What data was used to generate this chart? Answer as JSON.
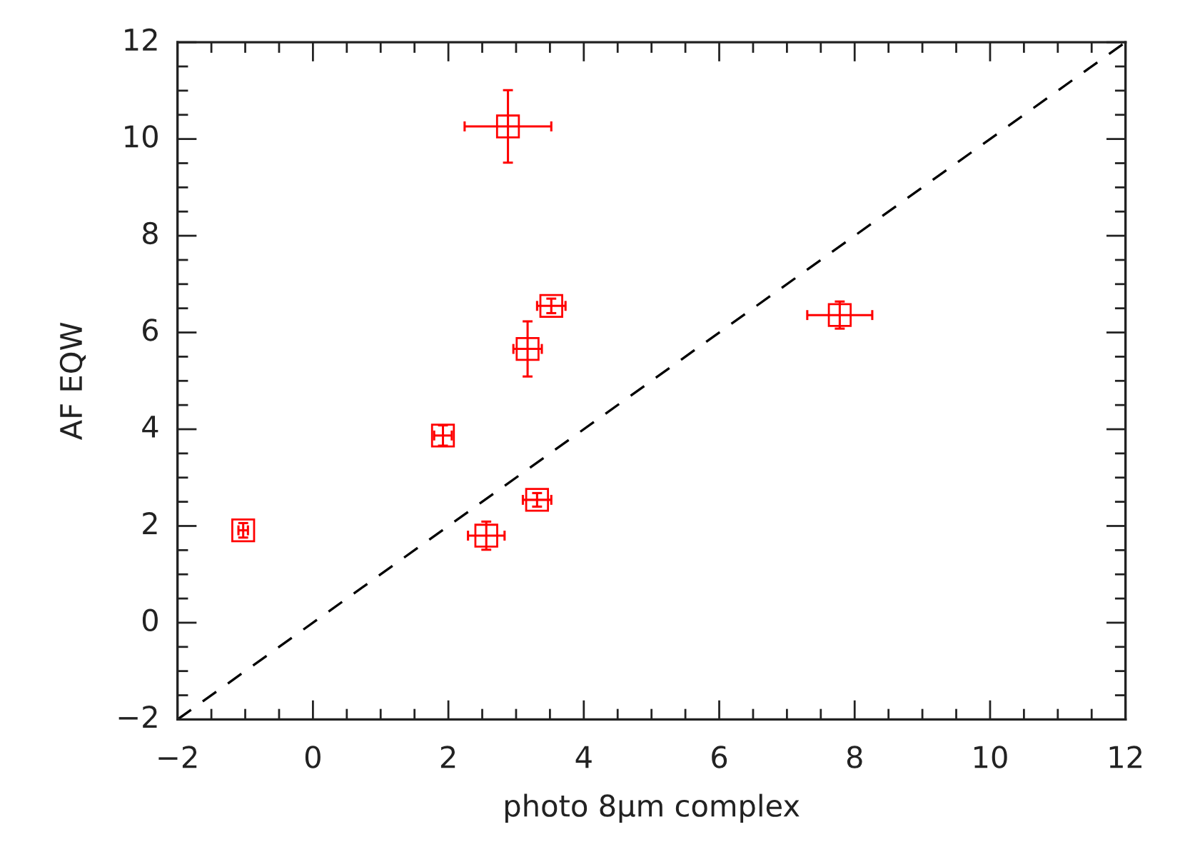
{
  "chart_data": {
    "type": "scatter",
    "xlabel": "photo 8μm complex",
    "ylabel": "AF EQW",
    "xlim": [
      -2,
      12
    ],
    "ylim": [
      -2,
      12
    ],
    "xticks": [
      -2,
      0,
      2,
      4,
      6,
      8,
      10,
      12
    ],
    "yticks": [
      -2,
      0,
      2,
      4,
      6,
      8,
      10,
      12
    ],
    "grid": false,
    "marker": "square",
    "series": [
      {
        "color": "#ff0000",
        "x": [
          -1.03,
          1.92,
          2.56,
          2.88,
          3.17,
          3.31,
          3.52,
          7.78
        ],
        "values": [
          1.91,
          3.87,
          1.8,
          10.26,
          5.66,
          2.54,
          6.55,
          6.36
        ],
        "errors": [
          0.15,
          0.21,
          0.29,
          0.75,
          0.57,
          0.14,
          0.15,
          0.28
        ],
        "xerrors": [
          0.07,
          0.13,
          0.27,
          0.64,
          0.21,
          0.21,
          0.21,
          0.48
        ]
      },
      {
        "type": "line",
        "color": "#000000",
        "line_style": "dashed",
        "marker": "none",
        "x": [
          -2,
          12
        ],
        "values": [
          -2,
          12
        ]
      }
    ]
  }
}
